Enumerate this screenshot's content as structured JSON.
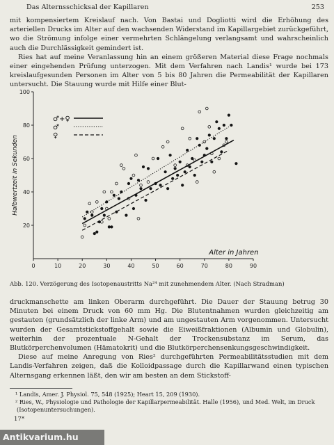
{
  "header": {
    "title": "Das Alternsschicksal der Kapillaren",
    "page_number": "253"
  },
  "para1": [
    "mit kompensiertem Kreislauf nach. Von Bastai und Dogliotti wird die Erhöhung des arteriellen Drucks im Alter auf den wachsenden Widerstand im Kapillargebiet zurückgeführt, wo die Strömung infolge einer vermehrten Schlängelung verlangsamt und wahrscheinlich auch die Durchlässigkeit gemindert ist.",
    "Ries hat auf meine Veranlassung hin an einem größeren Material diese Frage nochmals einer eingehenden Prüfung unterzogen. Mit dem Verfahren nach Landis¹ wurde bei 173 kreislaufgesunden Personen im Alter von 5 bis 80 Jahren die Permeabilität der Kapillaren untersucht. Die Stauung wurde mit Hilfe einer Blut-"
  ],
  "figure": {
    "caption": "Abb. 120. Verzögerung des Isotopenaustritts Na²⁴ mit zunehmendem Alter. (Nach Stradman)",
    "legend": [
      {
        "symbol": "♂+♀",
        "style": "solid"
      },
      {
        "symbol": "♂",
        "style": "dotted"
      },
      {
        "symbol": "♀",
        "style": "dashed"
      }
    ]
  },
  "chart_data": {
    "type": "scatter",
    "xlabel": "Alter in Jahren",
    "ylabel": "Halbwertzeit in Sekunden",
    "xlim": [
      0,
      90
    ],
    "ylim": [
      0,
      100
    ],
    "xticks": [
      0,
      10,
      20,
      30,
      40,
      50,
      60,
      70,
      80,
      90
    ],
    "yticks": [
      20,
      40,
      60,
      80,
      100
    ],
    "grid": false,
    "legend_position": "top-left",
    "series": [
      {
        "marker": "filled",
        "points": [
          [
            21,
            24
          ],
          [
            22,
            28
          ],
          [
            24,
            26
          ],
          [
            25,
            15
          ],
          [
            26,
            16
          ],
          [
            27,
            22
          ],
          [
            28,
            30
          ],
          [
            29,
            26
          ],
          [
            30,
            34
          ],
          [
            31,
            19
          ],
          [
            32,
            19
          ],
          [
            33,
            38
          ],
          [
            34,
            28
          ],
          [
            35,
            36
          ],
          [
            36,
            40
          ],
          [
            38,
            26
          ],
          [
            39,
            45
          ],
          [
            40,
            48
          ],
          [
            41,
            30
          ],
          [
            42,
            38
          ],
          [
            43,
            47
          ],
          [
            44,
            42
          ],
          [
            45,
            55
          ],
          [
            46,
            35
          ],
          [
            47,
            54
          ],
          [
            48,
            42
          ],
          [
            50,
            45
          ],
          [
            51,
            60
          ],
          [
            52,
            44
          ],
          [
            54,
            52
          ],
          [
            55,
            42
          ],
          [
            56,
            62
          ],
          [
            57,
            48
          ],
          [
            58,
            54
          ],
          [
            59,
            50
          ],
          [
            60,
            58
          ],
          [
            61,
            44
          ],
          [
            62,
            52
          ],
          [
            63,
            65
          ],
          [
            64,
            55
          ],
          [
            65,
            60
          ],
          [
            66,
            50
          ],
          [
            67,
            72
          ],
          [
            68,
            68
          ],
          [
            69,
            58
          ],
          [
            70,
            62
          ],
          [
            71,
            66
          ],
          [
            72,
            74
          ],
          [
            73,
            58
          ],
          [
            74,
            72
          ],
          [
            75,
            82
          ],
          [
            76,
            78
          ],
          [
            77,
            64
          ],
          [
            78,
            80
          ],
          [
            79,
            72
          ],
          [
            80,
            86
          ],
          [
            81,
            80
          ],
          [
            83,
            57
          ]
        ]
      },
      {
        "marker": "open",
        "points": [
          [
            20,
            13
          ],
          [
            21,
            20
          ],
          [
            23,
            33
          ],
          [
            24,
            28
          ],
          [
            26,
            34
          ],
          [
            28,
            22
          ],
          [
            29,
            40
          ],
          [
            30,
            30
          ],
          [
            31,
            24
          ],
          [
            32,
            40
          ],
          [
            34,
            45
          ],
          [
            36,
            56
          ],
          [
            37,
            54
          ],
          [
            39,
            36
          ],
          [
            41,
            50
          ],
          [
            42,
            62
          ],
          [
            43,
            24
          ],
          [
            44,
            44
          ],
          [
            47,
            46
          ],
          [
            49,
            60
          ],
          [
            53,
            67
          ],
          [
            55,
            70
          ],
          [
            58,
            56
          ],
          [
            61,
            78
          ],
          [
            63,
            56
          ],
          [
            64,
            72
          ],
          [
            66,
            59
          ],
          [
            67,
            46
          ],
          [
            68,
            88
          ],
          [
            70,
            70
          ],
          [
            71,
            90
          ],
          [
            72,
            79
          ],
          [
            73,
            63
          ],
          [
            74,
            52
          ],
          [
            76,
            60
          ],
          [
            78,
            68
          ],
          [
            79,
            70
          ]
        ]
      },
      {
        "name": "♂+♀",
        "style": "solid",
        "points": [
          [
            20,
            21
          ],
          [
            82,
            71
          ]
        ]
      },
      {
        "name": "♂",
        "style": "dotted",
        "points": [
          [
            20,
            25
          ],
          [
            80,
            79
          ]
        ]
      },
      {
        "name": "♀",
        "style": "dashed",
        "points": [
          [
            20,
            17
          ],
          [
            80,
            65
          ]
        ]
      }
    ]
  },
  "para2": [
    "druckmanschette am linken Oberarm durchgeführt. Die Dauer der Stauung betrug 30 Minuten bei einem Druck von 60 mm Hg. Die Blutentnahmen wurden gleichzeitig am gestauten (grundsätzlich der linke Arm) und am ungestauten Arm vorgenommen. Untersucht wurden der Gesamtstickstoffgehalt sowie die Eiweißfraktionen (Albumin und Globulin), weiterhin der prozentuale N-Gehalt der Trockensubstanz im Serum, das Blutkörperchenvolumen (Hämatokrit) und die Blutkörperchensenkungsgeschwindigkeit.",
    "Diese auf meine Anregung von Ries² durchgeführten Permeabilitätsstudien mit dem Landis-Verfahren zeigen, daß die Kolloidpassage durch die Kapillarwand einen typischen Alternsgang erkennen läßt, den wir am besten an dem Stickstoff-"
  ],
  "footnotes": [
    "¹ Landis, Amer. J. Physiol. 75, 548 (1925); Heart 15, 209 (1930).",
    "² Ries, W., Physiologie und Pathologie der Kapillarpermeabilität. Halle (1956), und Med. Welt, im Druck (Isotopenuntersuchungen)."
  ],
  "signature": "17*",
  "watermark": "Antikvarium.hu"
}
